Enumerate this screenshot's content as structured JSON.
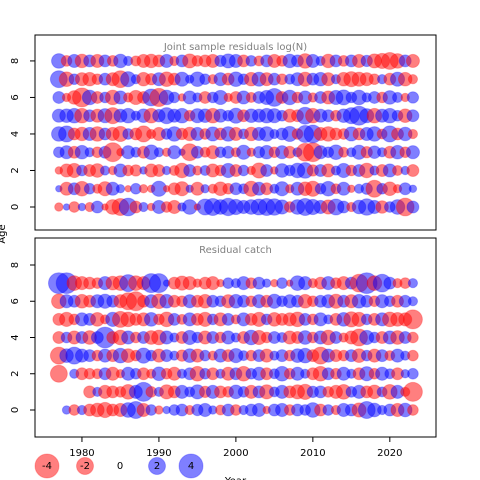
{
  "chart_data": [
    {
      "type": "bubble",
      "title": "Joint sample residuals log(N)",
      "ylabel": "Age",
      "xlim": [
        1973.9,
        2026
      ],
      "ylim": [
        -1.26,
        9.42
      ],
      "yticks": [
        0,
        2,
        4,
        6,
        8
      ],
      "pos_color": "#0000ff",
      "neg_color": "#ff0000",
      "x": [
        1977,
        1978,
        1979,
        1980,
        1981,
        1982,
        1983,
        1984,
        1985,
        1986,
        1987,
        1988,
        1989,
        1990,
        1991,
        1992,
        1993,
        1994,
        1995,
        1996,
        1997,
        1998,
        1999,
        2000,
        2001,
        2002,
        2003,
        2004,
        2005,
        2006,
        2007,
        2008,
        2009,
        2010,
        2011,
        2012,
        2013,
        2014,
        2015,
        2016,
        2017,
        2018,
        2019,
        2020,
        2021,
        2022,
        2023
      ],
      "ages": [
        0,
        1,
        2,
        3,
        4,
        5,
        6,
        7,
        8
      ],
      "residuals": [
        [
          -0.5,
          0.3,
          -0.8,
          0.4,
          -0.6,
          1.0,
          -0.3,
          -1.5,
          -2.0,
          2.2,
          -1.0,
          0.6,
          -0.4,
          1.2,
          -0.8,
          -1.2,
          0.5,
          1.5,
          -0.3,
          1.8,
          2.0,
          1.5,
          2.1,
          1.6,
          1.2,
          1.5,
          1.8,
          2.0,
          1.9,
          1.4,
          -0.8,
          1.5,
          2.0,
          1.6,
          1.2,
          -1.4,
          1.8,
          1.0,
          -0.6,
          1.3,
          1.9,
          1.2,
          -1.1,
          0.8,
          1.5,
          -2.2,
          1.0
        ],
        [
          0.3,
          -1.2,
          1.0,
          -1.5,
          0.8,
          -0.6,
          -1.4,
          1.2,
          0.5,
          -0.3,
          0.8,
          -0.5,
          -0.4,
          1.6,
          -0.3,
          -1.0,
          -1.4,
          0.4,
          -1.2,
          0.5,
          -0.6,
          -1.3,
          -0.8,
          1.0,
          0.7,
          -1.6,
          1.2,
          -1.0,
          0.6,
          1.4,
          -0.5,
          1.2,
          -1.3,
          -1.6,
          0.8,
          1.5,
          -0.7,
          1.2,
          -0.4,
          0.6,
          0.9,
          -2.0,
          0.8,
          -1.3,
          -0.5,
          1.0,
          0.4
        ],
        [
          -0.4,
          -1.2,
          -1.4,
          0.8,
          -1.0,
          -1.3,
          0.6,
          -0.5,
          1.2,
          -0.8,
          -0.9,
          0.4,
          -1.2,
          -1.0,
          0.5,
          -0.7,
          -1.5,
          1.0,
          -0.6,
          0.7,
          -1.2,
          -0.8,
          1.4,
          -1.0,
          0.8,
          -0.5,
          -1.6,
          1.0,
          -0.4,
          1.3,
          0.8,
          1.5,
          1.7,
          -0.9,
          1.0,
          -1.2,
          0.6,
          1.4,
          -0.8,
          1.0,
          -1.5,
          0.6,
          -1.0,
          1.2,
          -0.7,
          0.5,
          -1.0
        ],
        [
          0.8,
          1.2,
          -1.0,
          1.3,
          0.6,
          -0.8,
          1.0,
          -2.5,
          -0.4,
          1.2,
          0.7,
          -1.0,
          1.5,
          0.6,
          -0.5,
          1.2,
          0.3,
          -2.0,
          1.0,
          -0.7,
          -1.2,
          0.8,
          1.0,
          -0.6,
          1.4,
          -0.5,
          0.9,
          1.3,
          -0.8,
          1.2,
          -1.0,
          0.6,
          -2.2,
          -2.5,
          1.2,
          0.8,
          1.5,
          -0.7,
          0.6,
          1.4,
          -0.9,
          1.1,
          0.6,
          -1.0,
          1.3,
          -0.8,
          1.2
        ],
        [
          1.5,
          1.8,
          -1.0,
          -1.3,
          1.2,
          -1.5,
          1.0,
          -1.2,
          -1.6,
          0.8,
          -1.0,
          -1.8,
          -0.6,
          -1.2,
          0.8,
          1.5,
          -0.9,
          -1.3,
          1.2,
          -0.8,
          1.4,
          -1.0,
          1.5,
          -1.2,
          0.7,
          -1.3,
          1.2,
          1.5,
          0.6,
          1.0,
          1.6,
          -0.8,
          2.0,
          2.2,
          -1.2,
          -1.5,
          -1.0,
          -0.8,
          1.4,
          -1.0,
          1.2,
          1.5,
          -0.7,
          1.8,
          -1.0,
          1.3,
          -0.6
        ],
        [
          1.2,
          1.3,
          1.5,
          -1.5,
          1.0,
          -1.2,
          1.4,
          -1.8,
          1.2,
          1.5,
          0.6,
          1.3,
          -1.5,
          1.1,
          1.8,
          1.2,
          1.5,
          -0.8,
          1.4,
          1.3,
          -1.5,
          1.2,
          0.8,
          1.6,
          -1.0,
          1.3,
          1.2,
          1.5,
          1.4,
          0.8,
          -1.2,
          -1.0,
          2.0,
          -1.5,
          1.2,
          1.0,
          -0.8,
          1.3,
          1.8,
          2.5,
          1.4,
          -1.5,
          1.2,
          1.5,
          0.8,
          -1.3,
          1.0
        ],
        [
          1.0,
          -0.5,
          -1.3,
          -2.5,
          1.5,
          -1.0,
          0.8,
          -1.5,
          1.2,
          -0.6,
          -1.4,
          -1.0,
          2.0,
          -2.3,
          1.5,
          0.8,
          -0.4,
          1.2,
          0.6,
          -1.0,
          0.8,
          1.4,
          -0.5,
          -1.0,
          1.2,
          -0.7,
          1.0,
          1.4,
          2.2,
          -1.0,
          1.5,
          -0.8,
          1.2,
          -0.6,
          1.0,
          -1.2,
          1.4,
          1.6,
          0.8,
          1.5,
          0.6,
          1.0,
          -0.8,
          1.3,
          0.7,
          -0.5,
          0.9
        ],
        [
          2.0,
          -1.5,
          0.8,
          -1.2,
          -1.3,
          -0.8,
          1.0,
          -1.2,
          -2.0,
          1.6,
          0.6,
          -1.3,
          -0.9,
          1.2,
          -1.5,
          -1.0,
          1.4,
          0.5,
          1.5,
          0.8,
          -0.6,
          1.2,
          -1.0,
          1.5,
          0.8,
          -1.3,
          1.4,
          -1.2,
          1.0,
          -0.8,
          0.7,
          1.2,
          -1.4,
          1.0,
          1.3,
          -1.2,
          0.6,
          -1.3,
          -1.6,
          -1.4,
          -1.2,
          -0.8,
          0.6,
          -1.0,
          1.4,
          -1.3,
          -0.6
        ],
        [
          1.5,
          -0.8,
          1.2,
          -1.3,
          1.0,
          -1.2,
          1.0,
          -0.8,
          1.3,
          0.6,
          -0.7,
          -1.2,
          -1.3,
          -1.0,
          1.2,
          -0.6,
          1.0,
          -1.4,
          -0.8,
          -1.0,
          -1.2,
          0.9,
          1.4,
          1.2,
          -1.0,
          0.8,
          -0.7,
          1.0,
          -1.2,
          -0.8,
          1.3,
          1.0,
          -1.5,
          1.2,
          0.6,
          -1.3,
          1.0,
          -0.8,
          1.0,
          -1.2,
          0.9,
          -1.4,
          -1.6,
          -2.0,
          -1.5,
          1.0,
          -1.2
        ]
      ]
    },
    {
      "type": "bubble",
      "title": "Residual catch",
      "xlabel": "Year",
      "xlim": [
        1973.9,
        2026
      ],
      "ylim": [
        -1.49,
        9.49
      ],
      "yticks": [
        0,
        2,
        4,
        6,
        8
      ],
      "xticks": [
        1980,
        1990,
        2000,
        2010,
        2020
      ],
      "pos_color": "#0000ff",
      "neg_color": "#ff0000",
      "size_legend": [
        -4,
        -2,
        0,
        2,
        4
      ],
      "x": [
        1977,
        1978,
        1979,
        1980,
        1981,
        1982,
        1983,
        1984,
        1985,
        1986,
        1987,
        1988,
        1989,
        1990,
        1991,
        1992,
        1993,
        1994,
        1995,
        1996,
        1997,
        1998,
        1999,
        2000,
        2001,
        2002,
        2003,
        2004,
        2005,
        2006,
        2007,
        2008,
        2009,
        2010,
        2011,
        2012,
        2013,
        2014,
        2015,
        2016,
        2017,
        2018,
        2019,
        2020,
        2021,
        2022,
        2023
      ],
      "ages": [
        0,
        1,
        2,
        3,
        4,
        5,
        6,
        7
      ],
      "residuals": [
        [
          null,
          0.5,
          -0.8,
          0.6,
          -1.0,
          -1.3,
          -1.6,
          -1.0,
          -1.2,
          1.5,
          2.0,
          -1.2,
          0.8,
          -0.5,
          0.4,
          0.8,
          1.0,
          -0.6,
          0.9,
          1.2,
          0.5,
          -0.7,
          1.0,
          -0.8,
          0.6,
          1.0,
          1.2,
          -0.4,
          1.0,
          1.2,
          -0.8,
          1.0,
          0.8,
          1.5,
          -1.0,
          0.8,
          -0.6,
          1.2,
          1.0,
          -1.4,
          2.0,
          1.3,
          0.6,
          1.0,
          -1.2,
          1.3,
          -0.8
        ],
        [
          null,
          null,
          null,
          null,
          -1.0,
          0.6,
          -1.2,
          -1.0,
          -0.8,
          -1.5,
          1.2,
          2.5,
          -0.8,
          0.6,
          -1.4,
          -1.0,
          1.2,
          0.7,
          1.4,
          -0.9,
          1.2,
          -1.0,
          -0.8,
          1.3,
          0.8,
          -1.2,
          1.0,
          -1.4,
          0.7,
          1.2,
          -1.0,
          -1.4,
          -1.6,
          0.9,
          1.0,
          -0.8,
          -1.2,
          -1.5,
          0.8,
          1.2,
          -1.0,
          -1.3,
          0.7,
          -1.5,
          1.2,
          -0.6,
          -2.5
        ],
        [
          -2.0,
          null,
          0.6,
          -1.0,
          -0.8,
          -0.7,
          1.0,
          -1.2,
          -0.5,
          1.2,
          0.8,
          -1.0,
          -0.6,
          1.3,
          -0.8,
          -1.2,
          0.6,
          1.0,
          -1.5,
          0.8,
          -1.0,
          0.6,
          -1.2,
          1.0,
          -1.5,
          0.8,
          1.2,
          -1.0,
          0.7,
          1.5,
          -0.8,
          1.2,
          0.6,
          -1.0,
          -1.5,
          1.0,
          -0.8,
          1.2,
          0.6,
          -1.0,
          1.4,
          -0.8,
          1.2,
          0.7,
          -1.0,
          0.5,
          0.8
        ],
        [
          -2.0,
          1.3,
          2.0,
          1.2,
          1.0,
          -0.8,
          1.2,
          -1.0,
          1.5,
          -1.3,
          -0.8,
          1.6,
          0.8,
          -1.2,
          1.0,
          0.6,
          -0.9,
          1.3,
          -1.2,
          0.8,
          -0.6,
          1.2,
          -1.0,
          1.4,
          0.7,
          -0.8,
          1.0,
          -1.2,
          0.6,
          1.0,
          -0.8,
          1.3,
          1.5,
          -1.0,
          -2.0,
          1.2,
          -1.0,
          -0.8,
          1.0,
          -1.3,
          0.8,
          -1.2,
          1.0,
          -0.7,
          1.2,
          0.6,
          -0.8
        ],
        [
          -1.0,
          0.8,
          -1.2,
          1.0,
          -1.3,
          1.0,
          3.0,
          -1.0,
          -1.5,
          1.2,
          -0.8,
          1.0,
          -1.3,
          -1.5,
          1.2,
          0.6,
          -1.0,
          1.4,
          0.8,
          -1.2,
          1.0,
          -0.8,
          1.2,
          0.6,
          -1.0,
          1.5,
          -1.4,
          -0.8,
          1.0,
          0.7,
          -1.2,
          -1.0,
          1.3,
          -0.8,
          1.2,
          -1.5,
          1.0,
          -0.6,
          -1.2,
          -2.0,
          1.4,
          0.8,
          -1.0,
          1.2,
          -1.3,
          1.0,
          -0.8
        ],
        [
          -1.0,
          -1.4,
          -0.8,
          1.2,
          1.0,
          -1.3,
          -0.6,
          1.4,
          -1.8,
          -1.5,
          -1.0,
          -1.2,
          1.3,
          -0.8,
          -1.5,
          1.0,
          -0.7,
          1.2,
          -1.0,
          -1.4,
          0.8,
          -1.2,
          1.0,
          -0.6,
          1.2,
          -1.0,
          -1.4,
          0.8,
          -1.3,
          -1.0,
          -1.2,
          -1.5,
          1.0,
          -0.8,
          1.2,
          0.6,
          -1.0,
          1.3,
          -1.6,
          -1.4,
          0.8,
          -1.0,
          1.2,
          -1.5,
          -1.3,
          -1.2,
          -2.5
        ],
        [
          -1.5,
          1.2,
          1.0,
          -1.3,
          -1.0,
          1.2,
          1.4,
          1.0,
          -1.2,
          -2.0,
          -2.5,
          -1.0,
          1.2,
          -1.5,
          1.3,
          -1.0,
          -0.8,
          1.2,
          -1.0,
          -1.3,
          1.0,
          0.8,
          -1.2,
          1.3,
          1.0,
          -0.8,
          1.2,
          -1.0,
          1.4,
          0.8,
          1.2,
          1.0,
          -1.3,
          -0.8,
          1.0,
          1.2,
          -1.4,
          1.0,
          -1.2,
          1.3,
          1.0,
          -0.8,
          1.2,
          0.8,
          -1.0,
          1.0,
          0.6
        ],
        [
          3.0,
          3.0,
          -1.5,
          -1.2,
          -1.0,
          -0.8,
          1.2,
          -1.3,
          -1.5,
          2.0,
          -1.5,
          -1.2,
          2.5,
          2.5,
          0.3,
          -1.0,
          -1.4,
          -1.2,
          -0.5,
          -1.0,
          -1.2,
          -0.4,
          0.8,
          0.6,
          1.2,
          -0.8,
          1.0,
          0.5,
          -0.4,
          0.8,
          -0.3,
          1.5,
          1.2,
          -0.6,
          -1.0,
          1.2,
          -0.8,
          -1.2,
          1.0,
          -2.2,
          3.0,
          -1.5,
          2.2,
          1.0,
          -0.6,
          -0.8,
          0.6
        ]
      ]
    }
  ]
}
